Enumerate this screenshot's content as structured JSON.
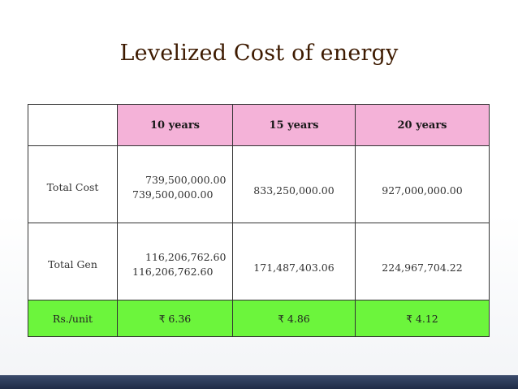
{
  "slide": {
    "title": "Levelized Cost of energy"
  },
  "table": {
    "headers": [
      "10 years",
      "15 years",
      "20 years"
    ],
    "total_cost": {
      "label": "Total Cost",
      "ten_years_line1": "739,500,000.00",
      "ten_years_line2": "739,500,000.00",
      "fifteen_years": "833,250,000.00",
      "twenty_years": "927,000,000.00"
    },
    "total_gen": {
      "label": "Total Gen",
      "ten_years_line1": "116,206,762.60",
      "ten_years_line2": "116,206,762.60",
      "fifteen_years": "171,487,403.06",
      "twenty_years": "224,967,704.22"
    },
    "unit_cost": {
      "label": "Rs./unit",
      "currency_symbol": "₹",
      "values": [
        "6.36",
        "4.86",
        "4.12"
      ]
    }
  },
  "colors": {
    "header_fill": "#f4b2d8",
    "unit_row_fill": "#6cf53c",
    "title_color": "#3d1a00",
    "footer_band": "#2a3a5a"
  }
}
